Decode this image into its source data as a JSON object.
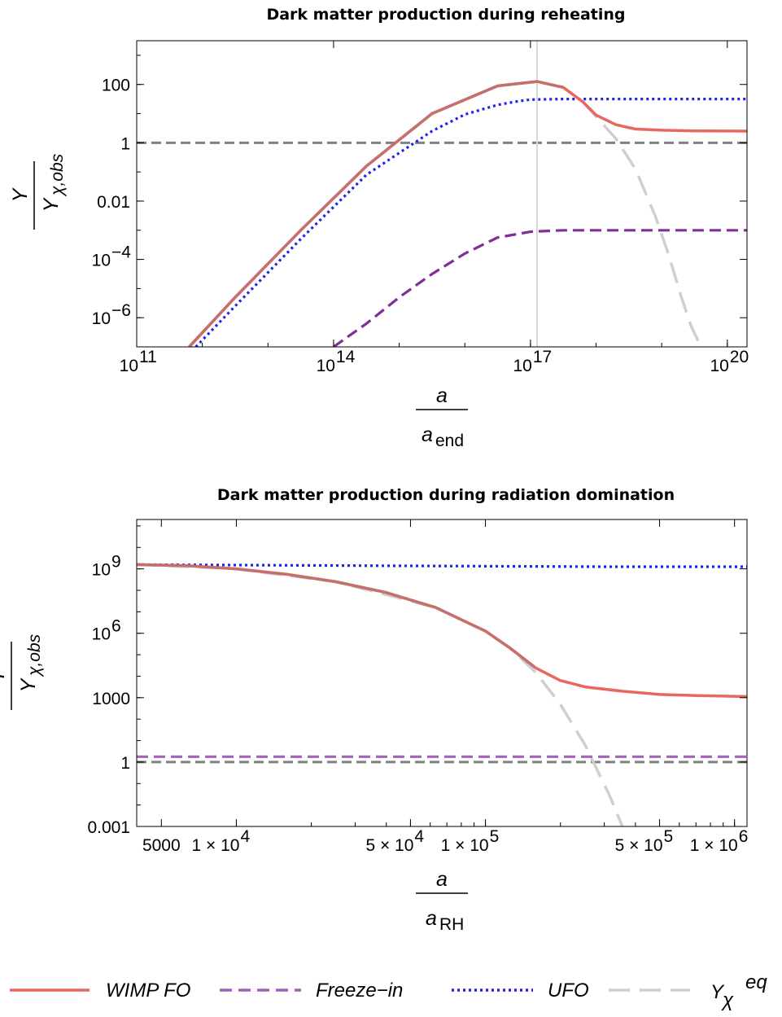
{
  "chart_data": [
    {
      "type": "line",
      "title": "Dark matter production during reheating",
      "x_scale": "log10",
      "y_scale": "log10",
      "xlim_log10": [
        11,
        20.3
      ],
      "ylim_log10": [
        -7,
        3.5
      ],
      "x_ticks": [
        {
          "mant": "",
          "exp": "11",
          "log": 11
        },
        {
          "mant": "",
          "exp": "14",
          "log": 14
        },
        {
          "mant": "",
          "exp": "17",
          "log": 17
        },
        {
          "mant": "",
          "exp": "20",
          "log": 20
        }
      ],
      "y_ticks": [
        {
          "text": "100",
          "log": 2,
          "style": "plain"
        },
        {
          "text": "1",
          "log": 0,
          "style": "plain"
        },
        {
          "text": "0.01",
          "log": -2,
          "style": "plain"
        },
        {
          "text": "−4",
          "log": -4,
          "style": "power"
        },
        {
          "text": "−6",
          "log": -6,
          "style": "power"
        }
      ],
      "ylabel": {
        "num": "Y",
        "den": "Y",
        "den_sub": "χ,obs"
      },
      "xlabel": {
        "num": "a",
        "den": "a",
        "den_sub": "end"
      },
      "vertical_line_log10": 17.1,
      "series": [
        {
          "name": "WIMP FO",
          "log10_x": [
            11.8,
            12.5,
            13.5,
            14.5,
            15.5,
            16.5,
            17.1,
            17.5,
            17.8,
            18.0,
            18.3,
            18.6,
            19.0,
            19.5,
            20.3
          ],
          "log10_y": [
            -7,
            -5.3,
            -3.0,
            -0.8,
            1.0,
            1.95,
            2.1,
            1.9,
            1.4,
            0.95,
            0.62,
            0.47,
            0.43,
            0.41,
            0.4
          ]
        },
        {
          "name": "Freeze-in",
          "log10_x": [
            14.0,
            14.5,
            15.0,
            15.5,
            16.0,
            16.5,
            17.0,
            17.5,
            18.0,
            19.0,
            20.3
          ],
          "log10_y": [
            -7,
            -6.2,
            -5.3,
            -4.5,
            -3.8,
            -3.25,
            -3.05,
            -3.0,
            -3.0,
            -3.0,
            -3.0
          ]
        },
        {
          "name": "UFO",
          "log10_x": [
            11.9,
            12.5,
            13.5,
            14.5,
            15.5,
            16.0,
            16.5,
            16.8,
            17.0,
            17.5,
            18.0,
            19.0,
            20.3
          ],
          "log10_y": [
            -7,
            -5.6,
            -3.3,
            -1.1,
            0.4,
            0.97,
            1.3,
            1.42,
            1.48,
            1.5,
            1.5,
            1.5,
            1.5
          ]
        },
        {
          "name": "Y_χ^eq",
          "log10_x": [
            17.8,
            18.0,
            18.3,
            18.6,
            18.9,
            19.1,
            19.3,
            19.45,
            19.6
          ],
          "log10_y": [
            1.4,
            0.9,
            0.15,
            -0.9,
            -2.5,
            -3.8,
            -5.3,
            -6.3,
            -7.0
          ]
        }
      ]
    },
    {
      "type": "line",
      "title": "Dark matter production during radiation domination",
      "x_scale": "log10",
      "y_scale": "log10",
      "xlim_log10": [
        3.6,
        6.05
      ],
      "ylim_log10": [
        -3,
        11.3
      ],
      "x_ticks": [
        {
          "mant": "",
          "exp": "",
          "plain": "5000",
          "log": 3.699
        },
        {
          "mant": "1 × 10",
          "exp": "4",
          "log": 4.0
        },
        {
          "mant": "5 × 10",
          "exp": "4",
          "log": 4.699
        },
        {
          "mant": "1 × 10",
          "exp": "5",
          "log": 5.0
        },
        {
          "mant": "5 × 10",
          "exp": "5",
          "log": 5.699
        },
        {
          "mant": "1 × 10",
          "exp": "6",
          "log": 6.0
        }
      ],
      "y_ticks": [
        {
          "text": "9",
          "log": 9,
          "style": "power"
        },
        {
          "text": "6",
          "log": 6,
          "style": "power"
        },
        {
          "text": "1000",
          "log": 3,
          "style": "plain"
        },
        {
          "text": "1",
          "log": 0,
          "style": "plain"
        },
        {
          "text": "0.001",
          "log": -3,
          "style": "plain"
        }
      ],
      "ylabel": {
        "num": "Y",
        "den": "Y",
        "den_sub": "χ,obs"
      },
      "xlabel": {
        "num": "a",
        "den": "a",
        "den_sub": "RH"
      },
      "series": [
        {
          "name": "WIMP FO",
          "log10_x": [
            3.6,
            3.8,
            4.0,
            4.2,
            4.4,
            4.6,
            4.8,
            5.0,
            5.1,
            5.2,
            5.3,
            5.4,
            5.55,
            5.7,
            5.85,
            6.05
          ],
          "log10_y": [
            9.2,
            9.15,
            9.0,
            8.75,
            8.4,
            7.9,
            7.2,
            6.1,
            5.3,
            4.4,
            3.8,
            3.5,
            3.3,
            3.15,
            3.1,
            3.05
          ]
        },
        {
          "name": "Freeze-in",
          "log10_x": [
            3.6,
            4.5,
            5.5,
            6.05
          ],
          "log10_y": [
            0.25,
            0.25,
            0.25,
            0.25
          ]
        },
        {
          "name": "UFO",
          "log10_x": [
            3.6,
            4.5,
            5.5,
            6.05
          ],
          "log10_y": [
            9.2,
            9.15,
            9.1,
            9.1
          ]
        },
        {
          "name": "Y_χ^eq",
          "log10_x": [
            3.6,
            4.0,
            4.4,
            4.8,
            5.0,
            5.1,
            5.2,
            5.3,
            5.4,
            5.5,
            5.55
          ],
          "log10_y": [
            9.2,
            9.0,
            8.4,
            7.2,
            6.1,
            5.3,
            4.2,
            2.7,
            0.8,
            -1.6,
            -3.0
          ]
        }
      ]
    }
  ],
  "legend": [
    {
      "label": "WIMP FO"
    },
    {
      "label": "Freeze−in"
    },
    {
      "label": "UFO"
    },
    {
      "label": "Y",
      "sub": "χ",
      "sup": "eq"
    }
  ],
  "colors": {
    "wimp": "#e8675e",
    "wimp_overlap": "#c4706e",
    "freeze_top": "#7e2f9a",
    "freeze_bottom": "#a462b9",
    "ufo": "#1d22ee",
    "eq": "#cfcfcf",
    "gray_ref": "#808080",
    "vline": "#d8d8d8"
  }
}
